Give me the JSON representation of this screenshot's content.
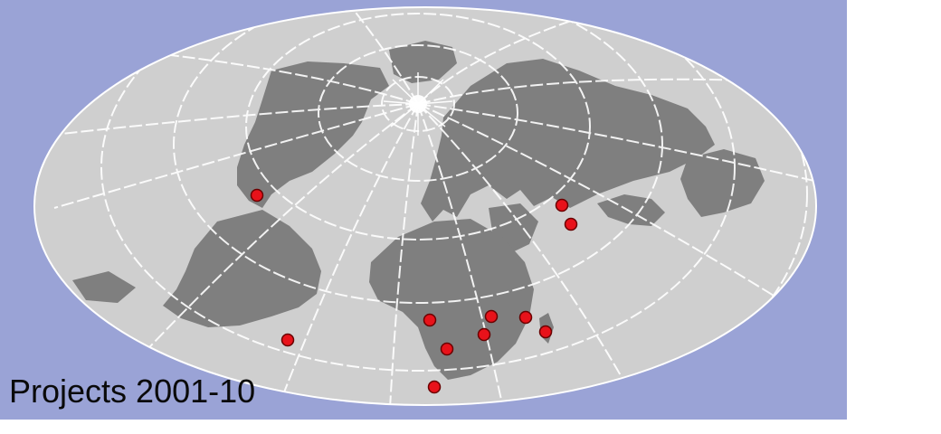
{
  "map": {
    "title": "Projects 2001-10",
    "projection": "oblique-elliptical",
    "colors": {
      "background": "#9aa3d6",
      "ocean": "#cfcfcf",
      "land": "#7f7f7f",
      "graticule": "#ffffff",
      "marker_fill": "#e8121a",
      "marker_stroke": "#6a0000"
    },
    "markers": [
      {
        "name": "Mexico"
      },
      {
        "name": "Brazil"
      },
      {
        "name": "Ghana"
      },
      {
        "name": "Angola"
      },
      {
        "name": "South Africa"
      },
      {
        "name": "Zambia"
      },
      {
        "name": "Malawi"
      },
      {
        "name": "Mozambique"
      },
      {
        "name": "Madagascar"
      },
      {
        "name": "Pakistan"
      },
      {
        "name": "India"
      }
    ]
  }
}
